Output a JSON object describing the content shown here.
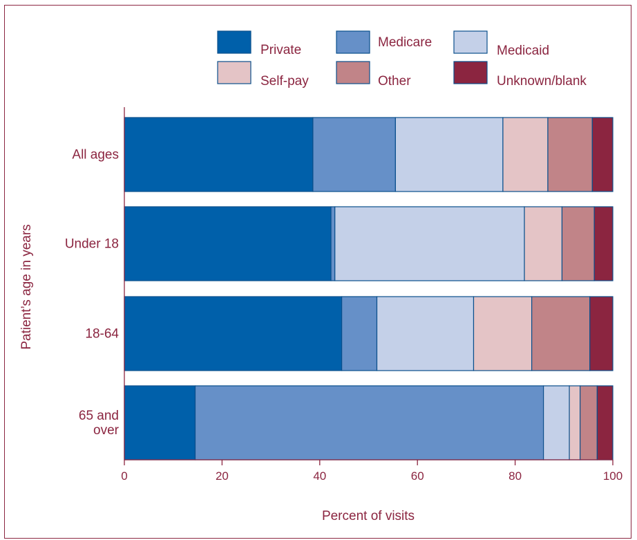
{
  "chart_data": {
    "type": "bar",
    "orientation": "horizontal",
    "stacked": true,
    "xlabel": "Percent of visits",
    "ylabel": "Patient’s age in years",
    "xlim": [
      0,
      100
    ],
    "xticks": [
      0,
      20,
      40,
      60,
      80,
      100
    ],
    "grid": false,
    "legend_position": "top",
    "categories": [
      [
        "All ages"
      ],
      [
        "Under 18"
      ],
      [
        "18-64"
      ],
      [
        "65 and",
        "over"
      ]
    ],
    "series": [
      {
        "name": "Private",
        "color": "#0060aa",
        "values": [
          38.6,
          42.3,
          44.5,
          14.5
        ]
      },
      {
        "name": "Medicare",
        "color": "#6690c8",
        "values": [
          16.9,
          0.8,
          7.2,
          71.3
        ]
      },
      {
        "name": "Medicaid",
        "color": "#c4d0e8",
        "values": [
          22.0,
          38.8,
          19.8,
          5.3
        ]
      },
      {
        "name": "Self-pay",
        "color": "#e4c4c6",
        "values": [
          9.2,
          7.7,
          11.9,
          2.2
        ]
      },
      {
        "name": "Other",
        "color": "#c18488",
        "values": [
          9.1,
          6.6,
          11.9,
          3.5
        ]
      },
      {
        "name": "Unknown/blank",
        "color": "#8b2540",
        "values": [
          4.2,
          3.8,
          4.7,
          3.2
        ]
      }
    ]
  }
}
